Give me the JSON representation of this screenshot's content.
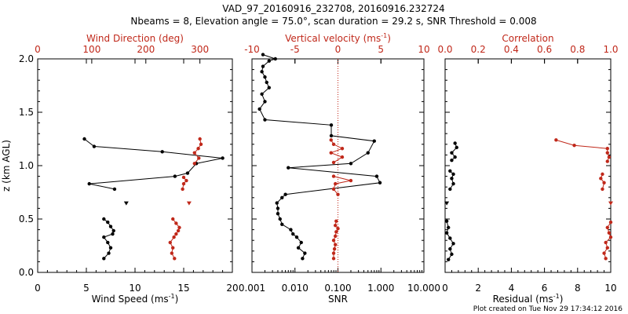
{
  "title_line1": "VAD_97_20160916_232708, 20160916.232724",
  "title_line2": "Nbeams = 8, Elevation angle = 75.0°, scan duration = 29.2 s, SNR Threshold = 0.008",
  "footer": "Plot created on Tue Nov 29 17:34:12 2016",
  "colors": {
    "primary": "#000000",
    "secondary": "#c0281a"
  },
  "y_axis": {
    "label": "z (km AGL)",
    "range": [
      0,
      2.0
    ],
    "ticks": [
      "0.0",
      "0.5",
      "1.0",
      "1.5",
      "2.0"
    ]
  },
  "chart_data": [
    {
      "type": "scatter",
      "bottom_axis": {
        "label": "Wind Speed (ms",
        "sup": "-1",
        "close": ")",
        "range": [
          0,
          20
        ],
        "ticks": [
          "0",
          "5",
          "10",
          "15",
          "20"
        ]
      },
      "top_axis": {
        "label": "Wind Direction (deg)",
        "range": [
          0,
          360
        ],
        "ticks": [
          "0",
          "100",
          "200",
          "300"
        ]
      },
      "series": [
        {
          "axis": "bottom",
          "color": "#000000",
          "segments": [
            [
              [
                6.8,
                0.13
              ],
              [
                7.3,
                0.18
              ],
              [
                7.5,
                0.23
              ],
              [
                7.2,
                0.28
              ],
              [
                6.8,
                0.33
              ],
              [
                7.7,
                0.36
              ],
              [
                7.8,
                0.39
              ],
              [
                7.5,
                0.43
              ],
              [
                7.2,
                0.47
              ],
              [
                6.8,
                0.5
              ]
            ],
            [
              [
                7.9,
                0.78
              ],
              [
                5.3,
                0.83
              ],
              [
                14.1,
                0.9
              ],
              [
                15.4,
                0.93
              ],
              [
                16.3,
                1.02
              ],
              [
                19.0,
                1.07
              ],
              [
                12.8,
                1.13
              ],
              [
                5.8,
                1.18
              ],
              [
                4.8,
                1.25
              ]
            ]
          ],
          "isolated": [
            [
              9.1,
              0.65
            ]
          ]
        },
        {
          "axis": "top",
          "color": "#c0281a",
          "segments": [
            [
              [
                253,
                0.13
              ],
              [
                248,
                0.18
              ],
              [
                250,
                0.23
              ],
              [
                245,
                0.28
              ],
              [
                252,
                0.33
              ],
              [
                256,
                0.36
              ],
              [
                260,
                0.39
              ],
              [
                262,
                0.42
              ],
              [
                256,
                0.46
              ],
              [
                250,
                0.5
              ]
            ],
            [
              [
                268,
                0.78
              ],
              [
                270,
                0.83
              ],
              [
                275,
                0.86
              ],
              [
                270,
                0.89
              ]
            ],
            [
              [
                290,
                1.02
              ],
              [
                298,
                1.07
              ],
              [
                290,
                1.12
              ],
              [
                297,
                1.16
              ],
              [
                302,
                1.2
              ],
              [
                300,
                1.25
              ]
            ]
          ],
          "isolated": [
            [
              280,
              0.65
            ]
          ]
        }
      ]
    },
    {
      "type": "line",
      "bottom_axis": {
        "label": "SNR",
        "scale": "log",
        "range": [
          0.001,
          10
        ],
        "ticks": [
          "0.001",
          "0.010",
          "0.100",
          "1.000",
          "10.000"
        ]
      },
      "top_axis": {
        "label": "Vertical velocity (ms",
        "sup": "-1",
        "close": ")",
        "range": [
          -10,
          10
        ],
        "ticks": [
          "-10",
          "-5",
          "0",
          "5",
          "10"
        ]
      },
      "reference_line": {
        "axis": "top",
        "value": 0
      },
      "series": [
        {
          "axis": "bottom",
          "color": "#000000",
          "points": [
            [
              0.015,
              0.13
            ],
            [
              0.017,
              0.18
            ],
            [
              0.012,
              0.23
            ],
            [
              0.014,
              0.28
            ],
            [
              0.011,
              0.33
            ],
            [
              0.009,
              0.36
            ],
            [
              0.008,
              0.4
            ],
            [
              0.005,
              0.45
            ],
            [
              0.0045,
              0.5
            ],
            [
              0.004,
              0.55
            ],
            [
              0.004,
              0.6
            ],
            [
              0.0038,
              0.65
            ],
            [
              0.005,
              0.7
            ],
            [
              0.006,
              0.73
            ],
            [
              0.95,
              0.84
            ],
            [
              0.8,
              0.9
            ],
            [
              0.007,
              0.98
            ],
            [
              0.2,
              1.02
            ],
            [
              0.5,
              1.12
            ],
            [
              0.7,
              1.23
            ],
            [
              0.07,
              1.28
            ],
            [
              0.07,
              1.38
            ],
            [
              0.002,
              1.43
            ],
            [
              0.0015,
              1.53
            ],
            [
              0.002,
              1.6
            ],
            [
              0.0017,
              1.67
            ],
            [
              0.0025,
              1.73
            ],
            [
              0.0022,
              1.78
            ],
            [
              0.002,
              1.83
            ],
            [
              0.0017,
              1.88
            ],
            [
              0.0018,
              1.93
            ],
            [
              0.0025,
              1.98
            ],
            [
              0.0035,
              2.0
            ],
            [
              0.0018,
              2.04
            ]
          ]
        },
        {
          "axis": "top",
          "color": "#c0281a",
          "segments": [
            [
              [
                -0.5,
                0.13
              ],
              [
                -0.5,
                0.18
              ],
              [
                -0.4,
                0.22
              ],
              [
                -0.3,
                0.26
              ],
              [
                -0.5,
                0.3
              ],
              [
                -0.3,
                0.34
              ],
              [
                -0.2,
                0.38
              ],
              [
                0.0,
                0.41
              ],
              [
                -0.3,
                0.44
              ],
              [
                -0.2,
                0.48
              ]
            ],
            [
              [
                0.0,
                0.73
              ],
              [
                -0.5,
                0.78
              ],
              [
                -0.3,
                0.83
              ],
              [
                1.5,
                0.86
              ],
              [
                -0.5,
                0.9
              ]
            ],
            [
              [
                -0.5,
                1.03
              ],
              [
                0.5,
                1.08
              ],
              [
                -0.8,
                1.12
              ],
              [
                0.5,
                1.16
              ],
              [
                -0.5,
                1.2
              ],
              [
                -0.8,
                1.24
              ]
            ]
          ]
        }
      ]
    },
    {
      "type": "scatter",
      "bottom_axis": {
        "label": "Residual (ms",
        "sup": "-1",
        "close": ")",
        "range": [
          0,
          10
        ],
        "ticks": [
          "0",
          "2",
          "4",
          "6",
          "8",
          "10"
        ]
      },
      "top_axis": {
        "label": "Correlation",
        "range": [
          0,
          1
        ],
        "ticks": [
          "0.0",
          "0.2",
          "0.4",
          "0.6",
          "0.8",
          "1.0"
        ]
      },
      "series": [
        {
          "axis": "bottom",
          "color": "#000000",
          "segments": [
            [
              [
                0.2,
                0.12
              ],
              [
                0.4,
                0.17
              ],
              [
                0.3,
                0.22
              ],
              [
                0.5,
                0.27
              ],
              [
                0.3,
                0.32
              ],
              [
                0.1,
                0.37
              ],
              [
                0.2,
                0.42
              ],
              [
                0.1,
                0.48
              ]
            ],
            [
              [
                0.3,
                0.78
              ],
              [
                0.5,
                0.83
              ],
              [
                0.4,
                0.88
              ],
              [
                0.5,
                0.92
              ],
              [
                0.3,
                0.95
              ]
            ],
            [
              [
                0.4,
                1.05
              ],
              [
                0.6,
                1.08
              ],
              [
                0.4,
                1.12
              ],
              [
                0.7,
                1.17
              ],
              [
                0.6,
                1.21
              ]
            ]
          ],
          "isolated": [
            [
              0.1,
              0.65
            ]
          ]
        },
        {
          "axis": "top",
          "color": "#c0281a",
          "segments": [
            [
              [
                0.97,
                0.13
              ],
              [
                0.96,
                0.18
              ],
              [
                0.98,
                0.23
              ],
              [
                0.97,
                0.28
              ],
              [
                1.0,
                0.33
              ],
              [
                0.99,
                0.37
              ],
              [
                0.98,
                0.42
              ],
              [
                1.0,
                0.47
              ]
            ],
            [
              [
                0.95,
                0.78
              ],
              [
                0.96,
                0.84
              ],
              [
                0.94,
                0.88
              ],
              [
                0.95,
                0.92
              ]
            ],
            [
              [
                0.98,
                1.04
              ],
              [
                0.99,
                1.08
              ],
              [
                0.98,
                1.12
              ],
              [
                0.98,
                1.16
              ],
              [
                0.78,
                1.19
              ],
              [
                0.67,
                1.24
              ]
            ]
          ],
          "isolated": [
            [
              1.0,
              0.65
            ]
          ]
        }
      ]
    }
  ]
}
